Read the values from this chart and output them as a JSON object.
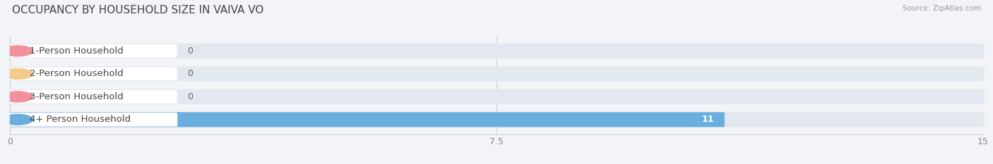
{
  "title": "OCCUPANCY BY HOUSEHOLD SIZE IN VAIVA VO",
  "source": "Source: ZipAtlas.com",
  "categories": [
    "1-Person Household",
    "2-Person Household",
    "3-Person Household",
    "4+ Person Household"
  ],
  "values": [
    0,
    0,
    0,
    11
  ],
  "bar_colors": [
    "#f2909c",
    "#f5c98a",
    "#f2909c",
    "#6aaee0"
  ],
  "xlim": [
    0,
    15
  ],
  "xticks": [
    0,
    7.5,
    15
  ],
  "background_color": "#f2f4f7",
  "bar_bg_color": "#e2e8ef",
  "title_fontsize": 11,
  "label_fontsize": 9.5,
  "value_fontsize": 9
}
